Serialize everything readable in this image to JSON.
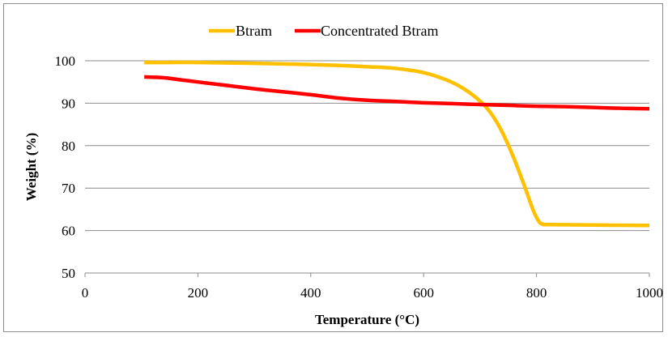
{
  "chart_data": {
    "type": "line",
    "xlabel": "Temperature (°C)",
    "ylabel": "Weight (%)",
    "xlim": [
      0,
      1000
    ],
    "ylim": [
      50,
      100
    ],
    "x_ticks": [
      0,
      200,
      400,
      600,
      800,
      1000
    ],
    "y_ticks": [
      50,
      60,
      70,
      80,
      90,
      100
    ],
    "grid": "horizontal",
    "legend": "top-center",
    "series": [
      {
        "name": "Btram",
        "color": "#FFC000",
        "x": [
          105,
          150,
          200,
          300,
          400,
          450,
          500,
          550,
          600,
          640,
          670,
          700,
          720,
          740,
          760,
          780,
          795,
          805,
          812,
          820,
          900,
          1000
        ],
        "y": [
          99.6,
          99.6,
          99.6,
          99.4,
          99.1,
          98.9,
          98.6,
          98.2,
          97.2,
          95.5,
          93.5,
          90.5,
          87.5,
          83.0,
          77.0,
          70.0,
          64.5,
          62.0,
          61.5,
          61.4,
          61.3,
          61.2
        ]
      },
      {
        "name": "Concentrated Btram",
        "color": "#FF0000",
        "x": [
          105,
          140,
          170,
          200,
          250,
          300,
          350,
          400,
          450,
          500,
          550,
          600,
          650,
          700,
          750,
          800,
          850,
          900,
          950,
          1000
        ],
        "y": [
          96.2,
          96.0,
          95.5,
          95.0,
          94.2,
          93.4,
          92.7,
          92.0,
          91.2,
          90.7,
          90.4,
          90.1,
          89.9,
          89.7,
          89.5,
          89.3,
          89.2,
          89.0,
          88.8,
          88.7
        ]
      }
    ]
  }
}
